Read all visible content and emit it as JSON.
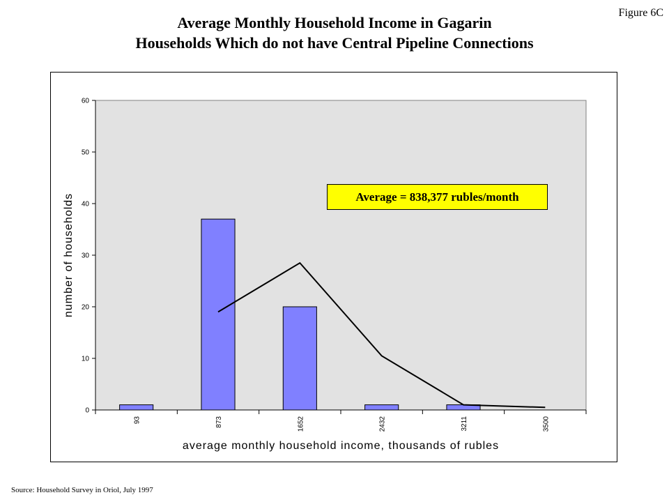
{
  "figure_label": "Figure 6C",
  "title_line1": "Average Monthly Household Income in Gagarin",
  "title_line2": "Households Which do not have Central Pipeline Connections",
  "source": "Source: Household Survey in Oriol, July 1997",
  "colors": {
    "plot_background": "#e2e2e2",
    "bar_fill": "#8080ff",
    "annotation_fill": "#ffff00",
    "line": "#000000"
  },
  "chart_data": {
    "type": "bar",
    "title": "",
    "xlabel": "average monthly household income, thousands of rubles",
    "ylabel": "number of households",
    "categories": [
      "93",
      "873",
      "1652",
      "2432",
      "3211",
      "3500"
    ],
    "ylim": [
      0,
      60
    ],
    "yticks": [
      0,
      10,
      20,
      30,
      40,
      50,
      60
    ],
    "grid": false,
    "series": [
      {
        "kind": "bar",
        "values": [
          1,
          37,
          20,
          1,
          1,
          null
        ]
      },
      {
        "kind": "line",
        "values": [
          null,
          19,
          28.5,
          10.5,
          1,
          0.5
        ]
      }
    ],
    "annotation": "Average = 838,377 rubles/month"
  }
}
